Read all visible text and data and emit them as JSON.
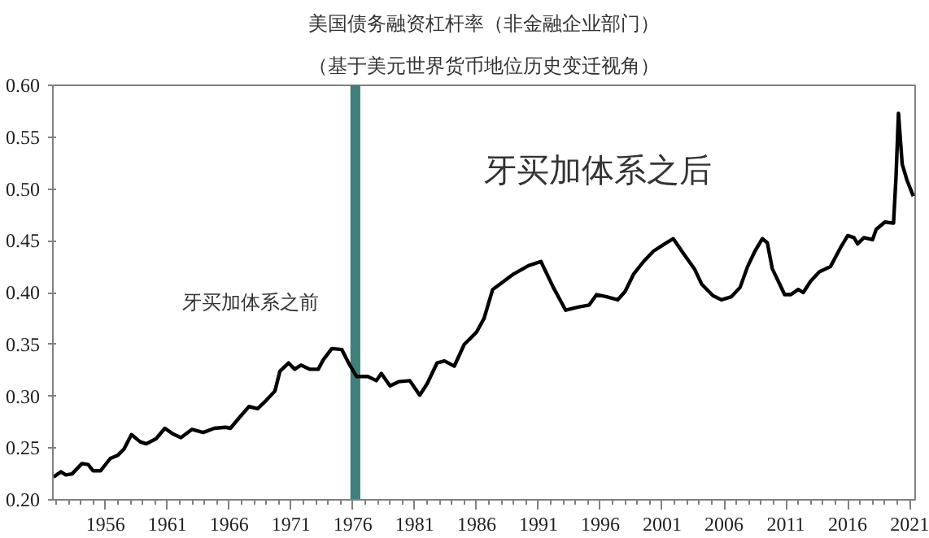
{
  "chart_data": {
    "type": "line",
    "title": "美国债务融资杠杆率（非金融企业部门）",
    "subtitle": "（基于美元世界货币地位历史变迁视角）",
    "x": [
      1951.8,
      1952.4,
      1952.8,
      1953.3,
      1954.1,
      1954.6,
      1955.0,
      1955.6,
      1956.4,
      1957.0,
      1957.5,
      1958.1,
      1958.8,
      1959.3,
      1960.1,
      1960.8,
      1961.4,
      1962.1,
      1963.0,
      1963.9,
      1964.8,
      1965.7,
      1966.1,
      1966.8,
      1967.6,
      1968.3,
      1969.0,
      1969.7,
      1970.1,
      1970.8,
      1971.3,
      1971.8,
      1972.5,
      1973.2,
      1973.6,
      1974.3,
      1975.1,
      1975.7,
      1976.3,
      1977.2,
      1977.9,
      1978.3,
      1979.0,
      1979.7,
      1980.6,
      1981.4,
      1982.0,
      1982.8,
      1983.4,
      1984.2,
      1985.0,
      1985.6,
      1986.0,
      1986.6,
      1987.3,
      1988.1,
      1989.0,
      1990.2,
      1991.2,
      1992.2,
      1993.2,
      1994.2,
      1995.1,
      1995.7,
      1996.5,
      1997.4,
      1998.0,
      1998.7,
      1999.5,
      2000.3,
      2001.2,
      2001.9,
      2002.7,
      2003.6,
      2004.2,
      2005.1,
      2005.8,
      2006.6,
      2007.3,
      2007.9,
      2008.5,
      2009.1,
      2009.5,
      2009.9,
      2010.5,
      2010.9,
      2011.4,
      2012.0,
      2012.4,
      2013.0,
      2013.7,
      2014.6,
      2015.4,
      2016.0,
      2016.5,
      2016.8,
      2017.3,
      2018.0,
      2018.3,
      2019.0,
      2019.7,
      2019.9,
      2020.1,
      2020.4,
      2020.8,
      2021.3
    ],
    "series": [
      {
        "color": "#000000",
        "values": [
          0.222,
          0.227,
          0.224,
          0.225,
          0.235,
          0.234,
          0.228,
          0.228,
          0.24,
          0.243,
          0.249,
          0.263,
          0.256,
          0.254,
          0.259,
          0.269,
          0.264,
          0.26,
          0.268,
          0.265,
          0.269,
          0.27,
          0.269,
          0.279,
          0.29,
          0.288,
          0.296,
          0.305,
          0.324,
          0.332,
          0.326,
          0.33,
          0.326,
          0.326,
          0.335,
          0.346,
          0.345,
          0.331,
          0.319,
          0.319,
          0.315,
          0.322,
          0.31,
          0.314,
          0.315,
          0.301,
          0.312,
          0.332,
          0.334,
          0.329,
          0.35,
          0.357,
          0.362,
          0.375,
          0.403,
          0.41,
          0.418,
          0.426,
          0.43,
          0.405,
          0.383,
          0.386,
          0.388,
          0.398,
          0.396,
          0.393,
          0.401,
          0.418,
          0.43,
          0.44,
          0.447,
          0.452,
          0.438,
          0.423,
          0.408,
          0.397,
          0.393,
          0.396,
          0.405,
          0.425,
          0.44,
          0.452,
          0.448,
          0.423,
          0.408,
          0.398,
          0.398,
          0.403,
          0.4,
          0.411,
          0.42,
          0.425,
          0.443,
          0.455,
          0.453,
          0.447,
          0.453,
          0.451,
          0.461,
          0.468,
          0.467,
          0.511,
          0.573,
          0.524,
          0.508,
          0.493
        ]
      }
    ],
    "xlim": [
      1951.75,
      2021.45
    ],
    "xticks": [
      {
        "value": 1952,
        "label": null
      },
      {
        "value": 1953,
        "label": null
      },
      {
        "value": 1954,
        "label": null
      },
      {
        "value": 1955,
        "label": null
      },
      1956,
      {
        "value": 1957,
        "label": null
      },
      {
        "value": 1958,
        "label": null
      },
      {
        "value": 1959,
        "label": null
      },
      {
        "value": 1960,
        "label": null
      },
      1961,
      {
        "value": 1962,
        "label": null
      },
      {
        "value": 1963,
        "label": null
      },
      {
        "value": 1964,
        "label": null
      },
      {
        "value": 1965,
        "label": null
      },
      1966,
      {
        "value": 1967,
        "label": null
      },
      {
        "value": 1968,
        "label": null
      },
      {
        "value": 1969,
        "label": null
      },
      {
        "value": 1970,
        "label": null
      },
      1971,
      {
        "value": 1972,
        "label": null
      },
      {
        "value": 1973,
        "label": null
      },
      {
        "value": 1974,
        "label": null
      },
      {
        "value": 1975,
        "label": null
      },
      1976,
      {
        "value": 1977,
        "label": null
      },
      {
        "value": 1978,
        "label": null
      },
      {
        "value": 1979,
        "label": null
      },
      {
        "value": 1980,
        "label": null
      },
      1981,
      {
        "value": 1982,
        "label": null
      },
      {
        "value": 1983,
        "label": null
      },
      {
        "value": 1984,
        "label": null
      },
      {
        "value": 1985,
        "label": null
      },
      1986,
      {
        "value": 1987,
        "label": null
      },
      {
        "value": 1988,
        "label": null
      },
      {
        "value": 1989,
        "label": null
      },
      {
        "value": 1990,
        "label": null
      },
      1991,
      {
        "value": 1992,
        "label": null
      },
      {
        "value": 1993,
        "label": null
      },
      {
        "value": 1994,
        "label": null
      },
      {
        "value": 1995,
        "label": null
      },
      1996,
      {
        "value": 1997,
        "label": null
      },
      {
        "value": 1998,
        "label": null
      },
      {
        "value": 1999,
        "label": null
      },
      {
        "value": 2000,
        "label": null
      },
      2001,
      {
        "value": 2002,
        "label": null
      },
      {
        "value": 2003,
        "label": null
      },
      {
        "value": 2004,
        "label": null
      },
      {
        "value": 2005,
        "label": null
      },
      2006,
      {
        "value": 2007,
        "label": null
      },
      {
        "value": 2008,
        "label": null
      },
      {
        "value": 2009,
        "label": null
      },
      {
        "value": 2010,
        "label": null
      },
      2011,
      {
        "value": 2012,
        "label": null
      },
      {
        "value": 2013,
        "label": null
      },
      {
        "value": 2014,
        "label": null
      },
      {
        "value": 2015,
        "label": null
      },
      2016,
      {
        "value": 2017,
        "label": null
      },
      {
        "value": 2018,
        "label": null
      },
      {
        "value": 2019,
        "label": null
      },
      {
        "value": 2020,
        "label": null
      },
      2021
    ],
    "ylim": [
      0.2,
      0.6
    ],
    "yticks": [
      {
        "value": 0.2,
        "label": "0.20"
      },
      {
        "value": 0.25,
        "label": "0.25"
      },
      {
        "value": 0.3,
        "label": "0.30"
      },
      {
        "value": 0.35,
        "label": "0.35"
      },
      {
        "value": 0.4,
        "label": "0.40"
      },
      {
        "value": 0.45,
        "label": "0.45"
      },
      {
        "value": 0.5,
        "label": "0.50"
      },
      {
        "value": 0.55,
        "label": "0.55"
      },
      {
        "value": 0.6,
        "label": "0.60"
      }
    ],
    "bands": [
      {
        "axis": "x",
        "from": 1975.8,
        "to": 1976.6,
        "color": "#3f7f7c"
      }
    ],
    "annotations": [
      "牙买加体系之前",
      "牙买加体系之后"
    ],
    "grid": false,
    "marker": "none",
    "line_style": "solid"
  }
}
